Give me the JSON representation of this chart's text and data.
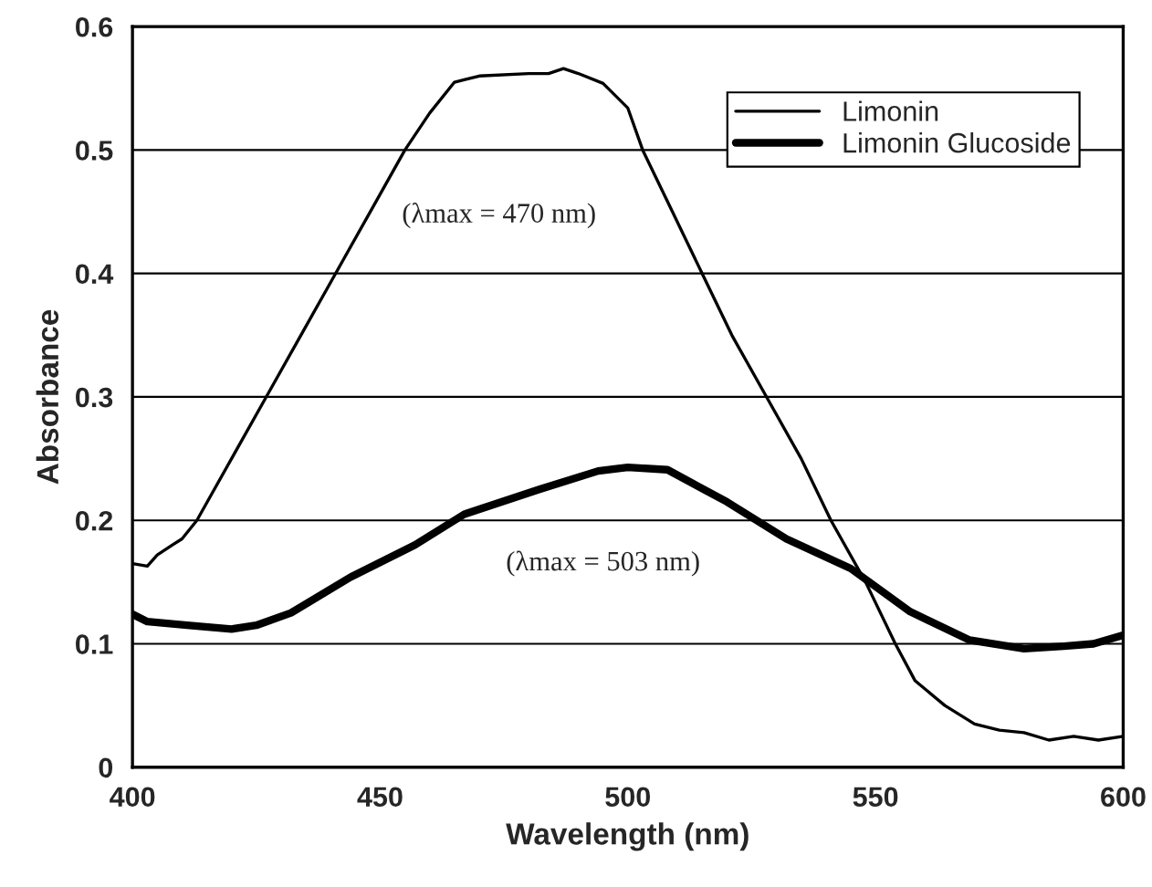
{
  "chart_data": {
    "type": "line",
    "xlabel": "Wavelength (nm)",
    "ylabel": "Absorbance",
    "xlim": [
      400,
      600
    ],
    "xticks": [
      400,
      450,
      500,
      550,
      600
    ],
    "ylim": [
      0,
      0.6
    ],
    "yticks": [
      0,
      0.1,
      0.2,
      0.3,
      0.4,
      0.5,
      0.6
    ],
    "grid": "y",
    "legend": "top right",
    "marker": "none",
    "line_style": "solid",
    "series": [
      {
        "name": "Limonin",
        "color": "#000000",
        "x": [
          400,
          403,
          405,
          408,
          410,
          413,
          420,
          427,
          434,
          441,
          448,
          455,
          460,
          465,
          470,
          480,
          484,
          487,
          490,
          495,
          500,
          503,
          509,
          515,
          521,
          528,
          535,
          541,
          548,
          554,
          558,
          564,
          570,
          575,
          580,
          585,
          590,
          595,
          600
        ],
        "values": [
          0.165,
          0.163,
          0.172,
          0.18,
          0.185,
          0.2,
          0.25,
          0.3,
          0.35,
          0.4,
          0.45,
          0.5,
          0.53,
          0.555,
          0.56,
          0.562,
          0.562,
          0.566,
          0.562,
          0.554,
          0.534,
          0.5,
          0.45,
          0.4,
          0.35,
          0.3,
          0.25,
          0.2,
          0.15,
          0.1,
          0.07,
          0.05,
          0.035,
          0.03,
          0.028,
          0.022,
          0.025,
          0.022,
          0.025
        ]
      },
      {
        "name": "Limonin Glucoside",
        "color": "#000000",
        "x": [
          400,
          403,
          411,
          420,
          425,
          432,
          444,
          457,
          467,
          482,
          494,
          500,
          508,
          520,
          532,
          545,
          557,
          569,
          580,
          588,
          594,
          600
        ],
        "values": [
          0.124,
          0.118,
          0.115,
          0.112,
          0.115,
          0.125,
          0.154,
          0.18,
          0.205,
          0.225,
          0.24,
          0.243,
          0.241,
          0.215,
          0.185,
          0.161,
          0.126,
          0.103,
          0.096,
          0.098,
          0.1,
          0.107
        ]
      }
    ],
    "annotations": [
      "(λmax = 470 nm)",
      "(λmax = 503 nm)"
    ]
  }
}
